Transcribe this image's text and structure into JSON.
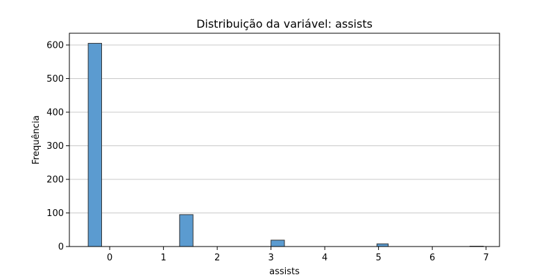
{
  "chart_data": {
    "type": "bar",
    "title": "Distribuição da variável: assists",
    "xlabel": "assists",
    "ylabel": "Frequência",
    "x_ticks": [
      0,
      1,
      2,
      3,
      4,
      5,
      6,
      7
    ],
    "y_ticks": [
      0,
      100,
      200,
      300,
      400,
      500,
      600
    ],
    "xlim": [
      -0.75,
      7.25
    ],
    "ylim": [
      0,
      635
    ],
    "grid": {
      "y": true,
      "x": false
    },
    "bars": [
      {
        "x_start": -0.4,
        "x_end": -0.15,
        "value": 605
      },
      {
        "x_start": 1.3,
        "x_end": 1.55,
        "value": 95
      },
      {
        "x_start": 3.0,
        "x_end": 3.25,
        "value": 19
      },
      {
        "x_start": 4.97,
        "x_end": 5.18,
        "value": 8
      },
      {
        "x_start": 6.7,
        "x_end": 6.95,
        "value": 1
      }
    ],
    "colors": {
      "bar_fill": "#5b9bd0",
      "bar_edge": "#333333",
      "grid": "#c8c8c8"
    }
  }
}
